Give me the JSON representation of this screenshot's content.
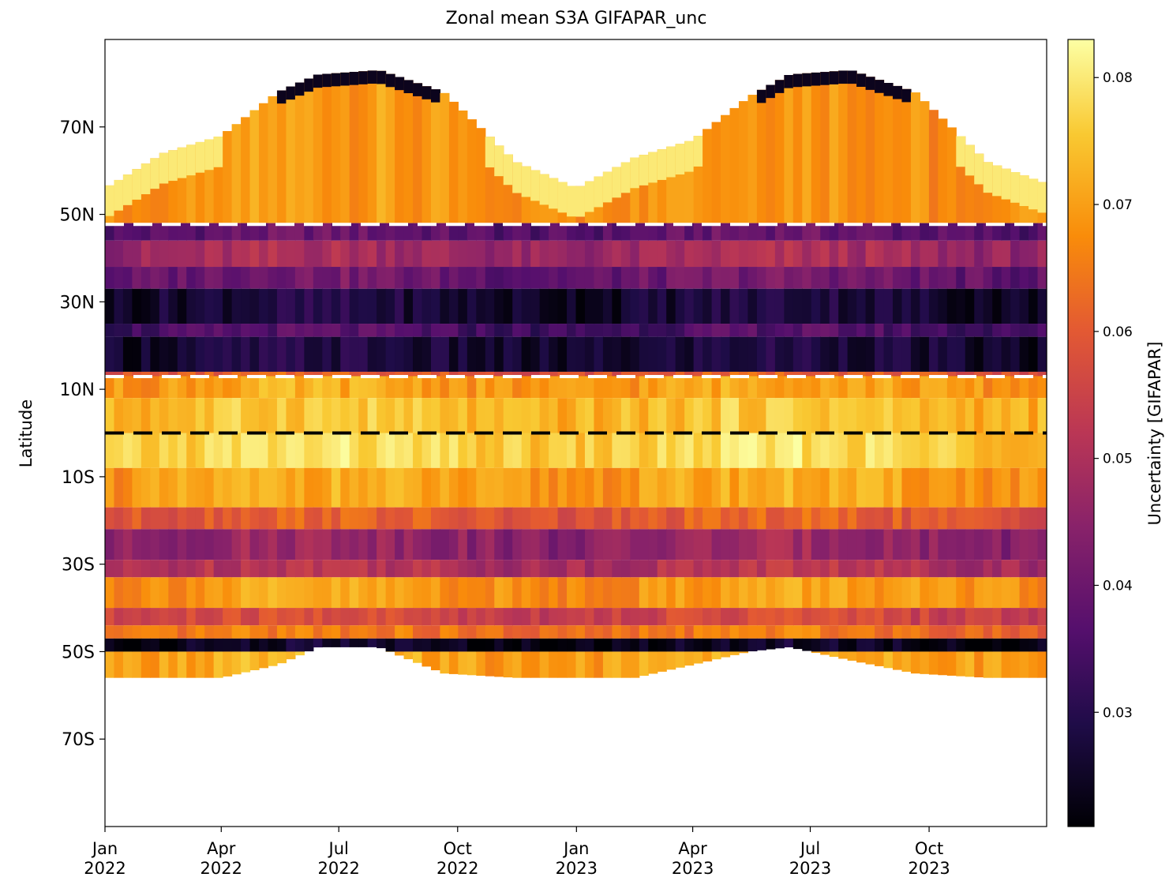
{
  "chart_data": {
    "type": "heatmap",
    "title": "Zonal mean S3A GIFAPAR_unc",
    "xlabel": "",
    "ylabel": "Latitude",
    "colorbar_label": "Uncertainty [GIFAPAR]",
    "colormap": "inferno",
    "value_range": [
      0.021,
      0.083
    ],
    "x_range": [
      "2022-01-01",
      "2023-12-31"
    ],
    "y_range": [
      -90,
      90
    ],
    "x_ticks": [
      {
        "date": "2022-01-01",
        "label": [
          "Jan",
          "2022"
        ]
      },
      {
        "date": "2022-04-01",
        "label": [
          "Apr",
          "2022"
        ]
      },
      {
        "date": "2022-07-01",
        "label": [
          "Jul",
          "2022"
        ]
      },
      {
        "date": "2022-10-01",
        "label": [
          "Oct",
          "2022"
        ]
      },
      {
        "date": "2023-01-01",
        "label": [
          "Jan",
          "2023"
        ]
      },
      {
        "date": "2023-04-01",
        "label": [
          "Apr",
          "2023"
        ]
      },
      {
        "date": "2023-07-01",
        "label": [
          "Jul",
          "2023"
        ]
      },
      {
        "date": "2023-10-01",
        "label": [
          "Oct",
          "2023"
        ]
      }
    ],
    "y_ticks": [
      {
        "lat": 70,
        "label": "70N"
      },
      {
        "lat": 50,
        "label": "50N"
      },
      {
        "lat": 30,
        "label": "30N"
      },
      {
        "lat": 10,
        "label": "10N"
      },
      {
        "lat": -10,
        "label": "10S"
      },
      {
        "lat": -30,
        "label": "30S"
      },
      {
        "lat": -50,
        "label": "50S"
      },
      {
        "lat": -70,
        "label": "70S"
      }
    ],
    "colorbar_ticks": [
      {
        "value": 0.03,
        "label": "0.03"
      },
      {
        "value": 0.04,
        "label": "0.04"
      },
      {
        "value": 0.05,
        "label": "0.05"
      },
      {
        "value": 0.06,
        "label": "0.06"
      },
      {
        "value": 0.07,
        "label": "0.07"
      },
      {
        "value": 0.08,
        "label": "0.08"
      }
    ],
    "reference_lines": [
      {
        "lat": 47.7,
        "color": "#ffffff",
        "style": "dashed"
      },
      {
        "lat": 12.9,
        "color": "#ffffff",
        "style": "dashed"
      },
      {
        "lat": 0,
        "color": "#000000",
        "style": "dashed"
      }
    ],
    "latitude_bands": [
      {
        "lat_min": 48,
        "lat_max": 84,
        "value": 0.068
      },
      {
        "lat_min": 44,
        "lat_max": 48,
        "value": 0.038
      },
      {
        "lat_min": 38,
        "lat_max": 44,
        "value": 0.048
      },
      {
        "lat_min": 33,
        "lat_max": 38,
        "value": 0.04
      },
      {
        "lat_min": 25,
        "lat_max": 33,
        "value": 0.027
      },
      {
        "lat_min": 22,
        "lat_max": 25,
        "value": 0.035
      },
      {
        "lat_min": 14,
        "lat_max": 22,
        "value": 0.027
      },
      {
        "lat_min": 13,
        "lat_max": 14,
        "value": 0.06
      },
      {
        "lat_min": 8,
        "lat_max": 13,
        "value": 0.07
      },
      {
        "lat_min": 0,
        "lat_max": 8,
        "value": 0.074
      },
      {
        "lat_min": -8,
        "lat_max": 0,
        "value": 0.077
      },
      {
        "lat_min": -17,
        "lat_max": -8,
        "value": 0.07
      },
      {
        "lat_min": -22,
        "lat_max": -17,
        "value": 0.06
      },
      {
        "lat_min": -29,
        "lat_max": -22,
        "value": 0.046
      },
      {
        "lat_min": -33,
        "lat_max": -29,
        "value": 0.051
      },
      {
        "lat_min": -40,
        "lat_max": -33,
        "value": 0.069
      },
      {
        "lat_min": -44,
        "lat_max": -40,
        "value": 0.056
      },
      {
        "lat_min": -47,
        "lat_max": -44,
        "value": 0.064
      },
      {
        "lat_min": -50,
        "lat_max": -47,
        "value": 0.024
      },
      {
        "lat_min": -56,
        "lat_max": -50,
        "value": 0.071
      }
    ],
    "coverage_edges": [
      {
        "date": "2022-01-01",
        "north_lat": 56,
        "south_lat": -56
      },
      {
        "date": "2022-02-15",
        "north_lat": 64,
        "south_lat": -56
      },
      {
        "date": "2022-04-01",
        "north_lat": 68,
        "south_lat": -56
      },
      {
        "date": "2022-05-15",
        "north_lat": 78,
        "south_lat": -53
      },
      {
        "date": "2022-06-15",
        "north_lat": 82,
        "south_lat": -49
      },
      {
        "date": "2022-08-01",
        "north_lat": 83,
        "south_lat": -49
      },
      {
        "date": "2022-09-20",
        "north_lat": 78,
        "south_lat": -55
      },
      {
        "date": "2022-11-15",
        "north_lat": 62,
        "south_lat": -56
      },
      {
        "date": "2023-01-01",
        "north_lat": 56,
        "south_lat": -56
      },
      {
        "date": "2023-02-15",
        "north_lat": 63,
        "south_lat": -56
      },
      {
        "date": "2023-04-01",
        "north_lat": 67,
        "south_lat": -53
      },
      {
        "date": "2023-05-15",
        "north_lat": 77,
        "south_lat": -50
      },
      {
        "date": "2023-06-15",
        "north_lat": 82,
        "south_lat": -49
      },
      {
        "date": "2023-08-01",
        "north_lat": 83,
        "south_lat": -52
      },
      {
        "date": "2023-09-20",
        "north_lat": 78,
        "south_lat": -55
      },
      {
        "date": "2023-11-15",
        "north_lat": 62,
        "south_lat": -56
      },
      {
        "date": "2023-12-31",
        "north_lat": 57,
        "south_lat": -56
      }
    ],
    "cap_features": [
      {
        "type": "polar-edge",
        "season": "northern-summer",
        "value": 0.024
      },
      {
        "type": "polar-edge",
        "season": "northern-winter",
        "value": 0.08
      }
    ]
  }
}
